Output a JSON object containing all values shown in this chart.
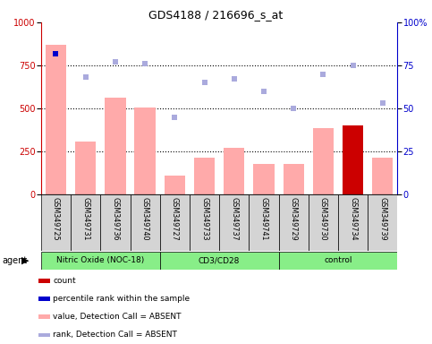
{
  "title": "GDS4188 / 216696_s_at",
  "samples": [
    "GSM349725",
    "GSM349731",
    "GSM349736",
    "GSM349740",
    "GSM349727",
    "GSM349733",
    "GSM349737",
    "GSM349741",
    "GSM349729",
    "GSM349730",
    "GSM349734",
    "GSM349739"
  ],
  "bar_values": [
    870,
    305,
    560,
    505,
    110,
    215,
    270,
    175,
    175,
    385,
    400,
    215
  ],
  "bar_colors": [
    "#ffaaaa",
    "#ffaaaa",
    "#ffaaaa",
    "#ffaaaa",
    "#ffaaaa",
    "#ffaaaa",
    "#ffaaaa",
    "#ffaaaa",
    "#ffaaaa",
    "#ffaaaa",
    "#cc0000",
    "#ffaaaa"
  ],
  "rank_values": [
    82,
    68,
    77,
    76,
    45,
    65,
    67,
    60,
    50,
    70,
    75,
    53
  ],
  "rank_colors": [
    "#0000cc",
    "#aaaadd",
    "#aaaadd",
    "#aaaadd",
    "#aaaadd",
    "#aaaadd",
    "#aaaadd",
    "#aaaadd",
    "#aaaadd",
    "#aaaadd",
    "#aaaadd",
    "#aaaadd"
  ],
  "ylim_left": [
    0,
    1000
  ],
  "ylim_right": [
    0,
    100
  ],
  "yticks_left": [
    0,
    250,
    500,
    750,
    1000
  ],
  "yticks_right": [
    0,
    25,
    50,
    75,
    100
  ],
  "groups": [
    {
      "label": "Nitric Oxide (NOC-18)",
      "start": 0,
      "end": 4
    },
    {
      "label": "CD3/CD28",
      "start": 4,
      "end": 8
    },
    {
      "label": "control",
      "start": 8,
      "end": 12
    }
  ],
  "agent_label": "agent",
  "group_color": "#88ee88",
  "legend_items": [
    {
      "color": "#cc0000",
      "label": "count"
    },
    {
      "color": "#0000cc",
      "label": "percentile rank within the sample"
    },
    {
      "color": "#ffaaaa",
      "label": "value, Detection Call = ABSENT"
    },
    {
      "color": "#aaaadd",
      "label": "rank, Detection Call = ABSENT"
    }
  ],
  "left_axis_color": "#cc0000",
  "right_axis_color": "#0000cc",
  "cell_bg": "#d4d4d4",
  "grid_lines": [
    250,
    500,
    750
  ]
}
